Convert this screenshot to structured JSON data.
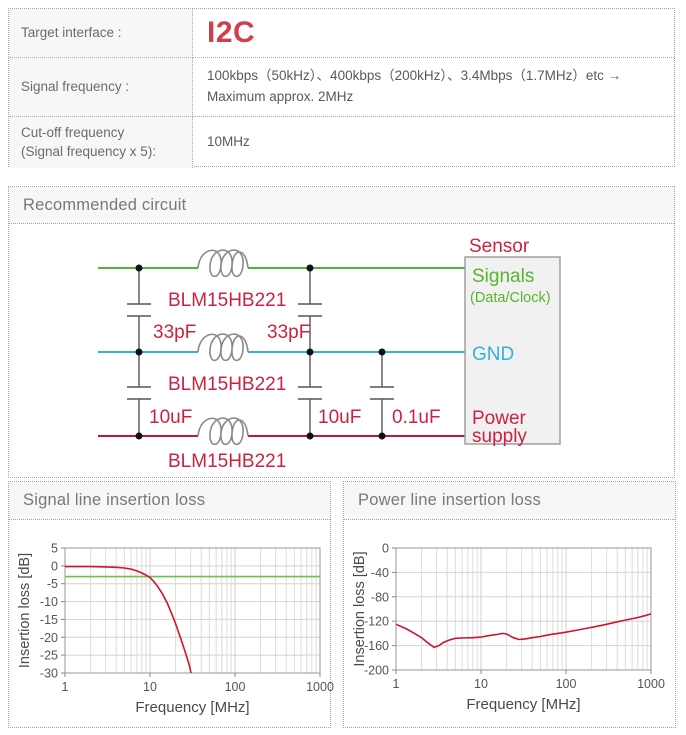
{
  "colors": {
    "accent_red": "#cc2240",
    "big_red": "#d0404a",
    "green": "#55b52e",
    "cyan": "#35b1db",
    "line_red": "#cc1133",
    "chart_red": "#d21430",
    "chart_ref_green": "#6cc24a"
  },
  "table": {
    "rows": [
      {
        "label": "Target interface :",
        "value": "I2C"
      },
      {
        "label": "Signal frequency :",
        "value": "100kbps（50kHz）、400kbps（200kHz）、3.4Mbps（1.7MHz）etc →\nMaximum approx. 2MHz"
      },
      {
        "label": "Cut-off frequency\n(Signal frequency x 5):",
        "value": "10MHz"
      }
    ]
  },
  "circuit": {
    "title": "Recommended circuit",
    "beads": [
      "BLM15HB221",
      "BLM15HB221",
      "BLM15HB221"
    ],
    "caps": [
      "33pF",
      "33pF",
      "10uF",
      "10uF",
      "0.1uF"
    ],
    "sensor": {
      "title": "Sensor",
      "signals": "Signals",
      "signals_sub": "(Data/Clock)",
      "gnd": "GND",
      "power_line1": "Power",
      "power_line2": "supply"
    }
  },
  "charts": {
    "signal_title": "Signal line insertion loss",
    "power_title": "Power line insertion loss"
  },
  "chart_data": [
    {
      "type": "line",
      "title": "Signal line insertion loss",
      "xlabel": "Frequency [MHz]",
      "ylabel": "Insertion loss [dB]",
      "xscale": "log",
      "xlim": [
        1,
        1000
      ],
      "ylim": [
        -30,
        5
      ],
      "xticks": [
        1,
        10,
        100,
        1000
      ],
      "yticks": [
        5,
        0,
        -5,
        -10,
        -15,
        -20,
        -25,
        -30
      ],
      "grid": true,
      "series": [
        {
          "name": "signal-line-insertion-loss",
          "color": "#d21430",
          "points": [
            [
              1,
              -0.2
            ],
            [
              2,
              -0.2
            ],
            [
              3,
              -0.3
            ],
            [
              4,
              -0.4
            ],
            [
              5,
              -0.6
            ],
            [
              6,
              -0.9
            ],
            [
              7,
              -1.4
            ],
            [
              8,
              -2.0
            ],
            [
              9,
              -2.6
            ],
            [
              10,
              -3.3
            ],
            [
              11,
              -4.3
            ],
            [
              12,
              -5.4
            ],
            [
              14,
              -7.8
            ],
            [
              16,
              -10.5
            ],
            [
              18,
              -13.4
            ],
            [
              20,
              -16.2
            ],
            [
              23,
              -20.3
            ],
            [
              26,
              -24.2
            ],
            [
              29,
              -27.8
            ],
            [
              31,
              -31
            ]
          ]
        },
        {
          "name": "minus-3db-reference",
          "color": "#6cc24a",
          "points": [
            [
              1,
              -3
            ],
            [
              1000,
              -3
            ]
          ]
        }
      ]
    },
    {
      "type": "line",
      "title": "Power line insertion loss",
      "xlabel": "Frequency [MHz]",
      "ylabel": "Insertion loss [dB]",
      "xscale": "log",
      "xlim": [
        1,
        1000
      ],
      "ylim": [
        -200,
        0
      ],
      "xticks": [
        1,
        10,
        100,
        1000
      ],
      "yticks": [
        0,
        -40,
        -80,
        -120,
        -160,
        -200
      ],
      "grid": true,
      "series": [
        {
          "name": "power-line-insertion-loss",
          "color": "#d21430",
          "points": [
            [
              1,
              -125
            ],
            [
              1.3,
              -132
            ],
            [
              1.6,
              -139
            ],
            [
              2,
              -147
            ],
            [
              2.4,
              -156
            ],
            [
              2.8,
              -163
            ],
            [
              3.2,
              -160
            ],
            [
              3.6,
              -155
            ],
            [
              4.2,
              -151
            ],
            [
              5,
              -148
            ],
            [
              6,
              -147.5
            ],
            [
              8,
              -147
            ],
            [
              10,
              -146
            ],
            [
              12,
              -144
            ],
            [
              15,
              -142
            ],
            [
              18,
              -140
            ],
            [
              20,
              -141
            ],
            [
              24,
              -147
            ],
            [
              28,
              -150
            ],
            [
              33,
              -149
            ],
            [
              40,
              -147
            ],
            [
              50,
              -145
            ],
            [
              65,
              -142
            ],
            [
              80,
              -140
            ],
            [
              100,
              -138
            ],
            [
              130,
              -135
            ],
            [
              170,
              -132
            ],
            [
              220,
              -129
            ],
            [
              300,
              -125
            ],
            [
              400,
              -121
            ],
            [
              550,
              -117
            ],
            [
              700,
              -114
            ],
            [
              850,
              -111
            ],
            [
              1000,
              -108
            ]
          ]
        }
      ]
    }
  ]
}
